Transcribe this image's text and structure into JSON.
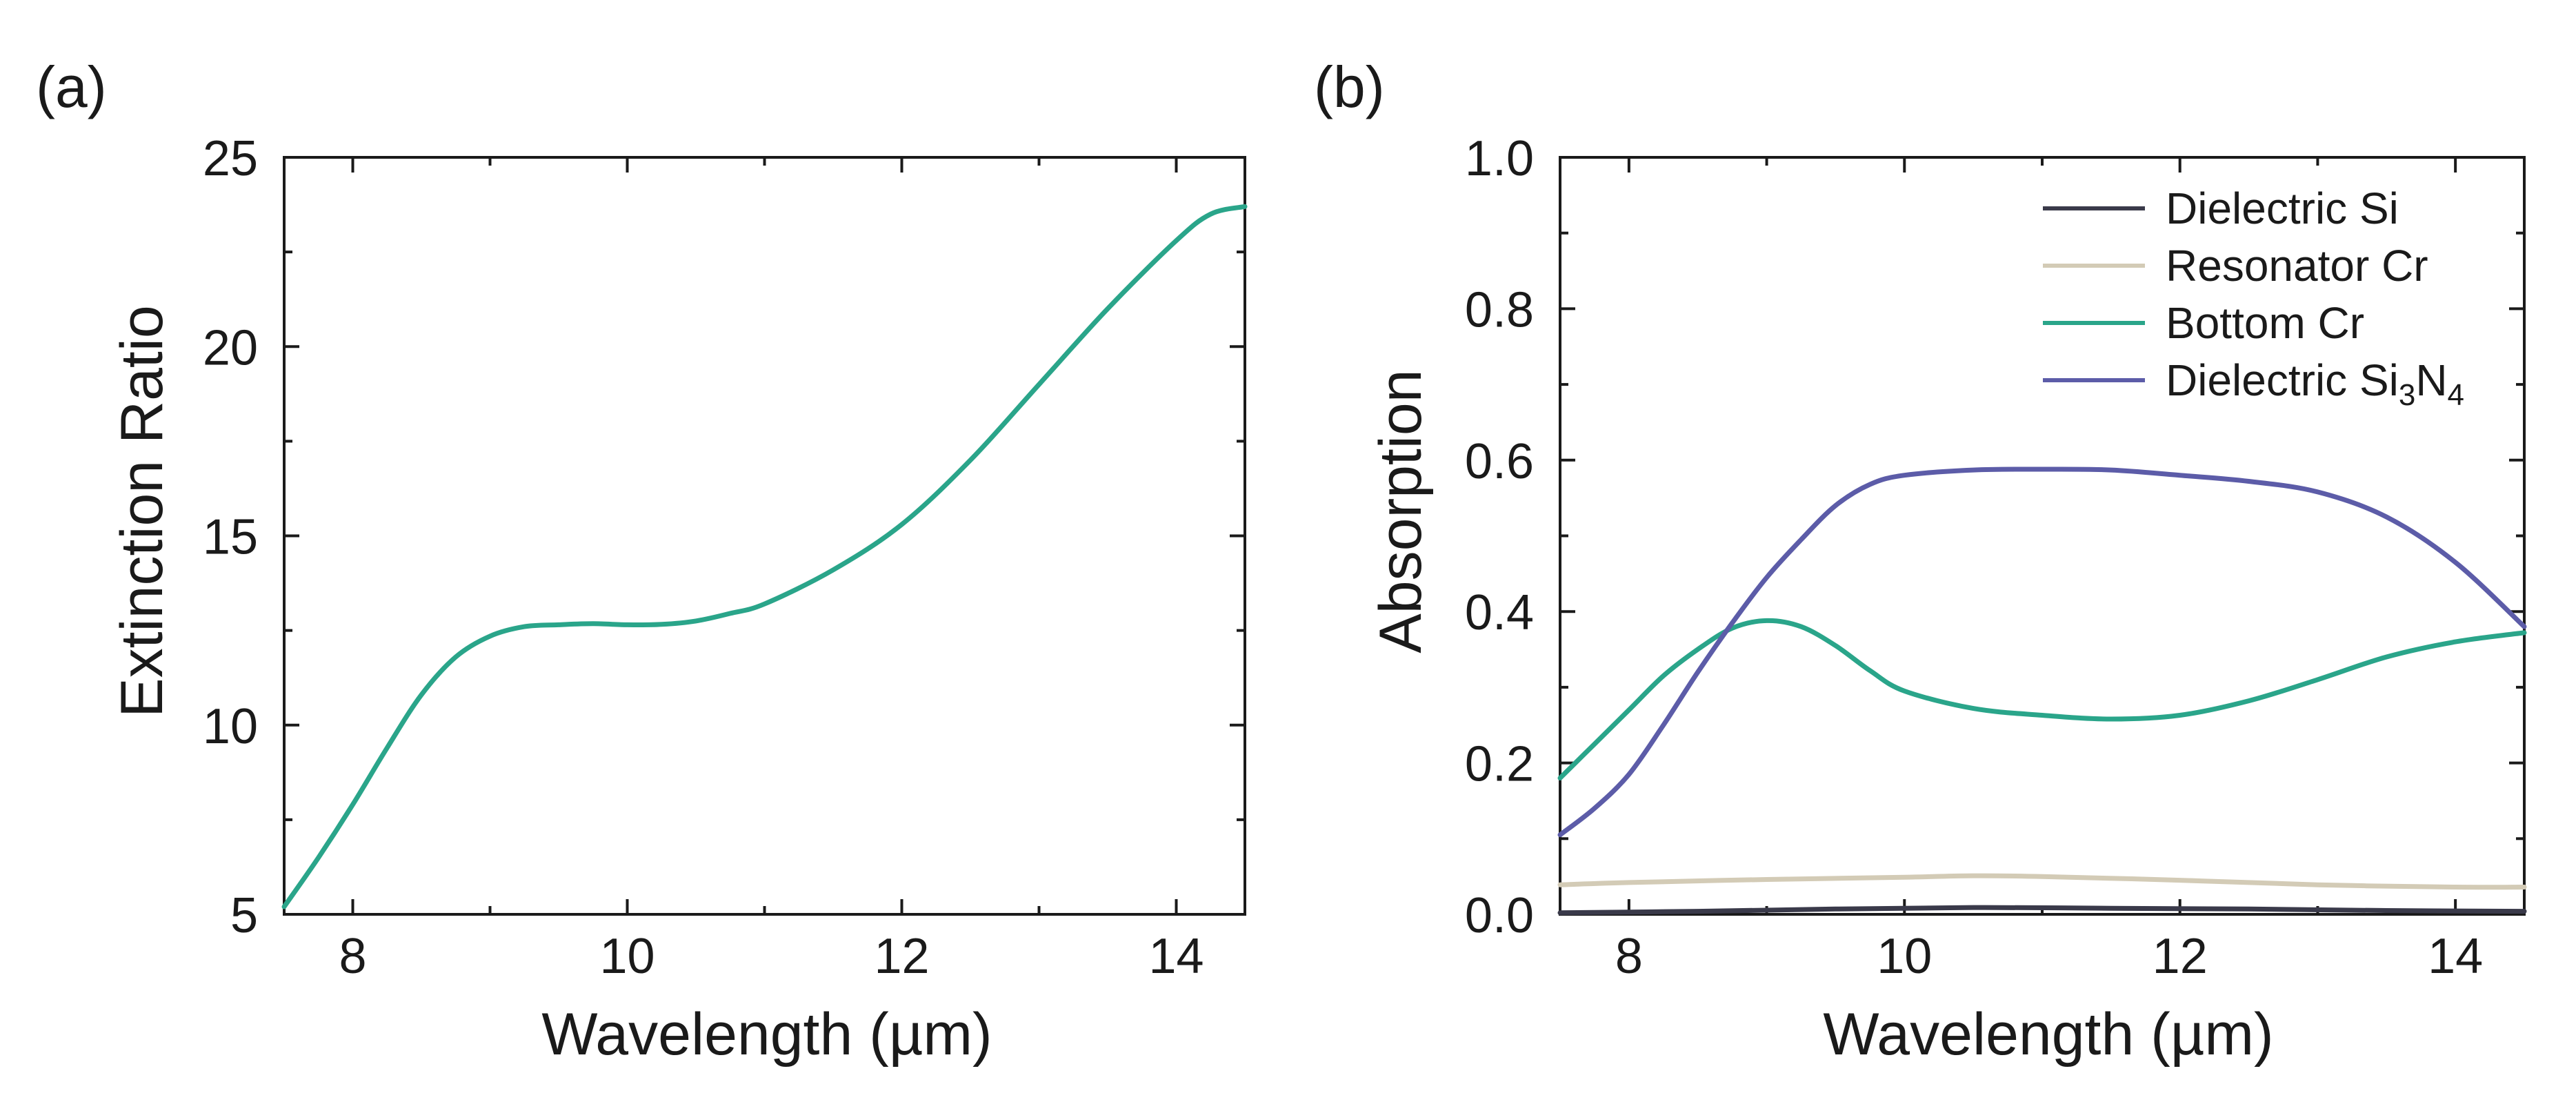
{
  "chart_data": [
    {
      "panel": "(a)",
      "type": "line",
      "title": "",
      "xlabel": "Wavelength (µm)",
      "ylabel": "Extinction Ratio",
      "xlim": [
        7.5,
        14.5
      ],
      "ylim": [
        5,
        25
      ],
      "xticks": [
        8,
        10,
        12,
        14
      ],
      "xtick_labels": [
        "8",
        "10",
        "12",
        "14"
      ],
      "yticks": [
        5,
        10,
        15,
        20,
        25
      ],
      "ytick_labels": [
        "5",
        "10",
        "15",
        "20",
        "25"
      ],
      "grid": false,
      "series": [
        {
          "name": "Extinction Ratio",
          "color": "#2aa58a",
          "x": [
            7.5,
            7.75,
            8.0,
            8.25,
            8.5,
            8.75,
            9.0,
            9.25,
            9.5,
            9.75,
            10.0,
            10.25,
            10.5,
            10.75,
            11.0,
            11.5,
            12.0,
            12.5,
            13.0,
            13.5,
            14.0,
            14.25,
            14.5
          ],
          "y": [
            5.2,
            6.5,
            7.9,
            9.4,
            10.8,
            11.8,
            12.35,
            12.6,
            12.65,
            12.68,
            12.65,
            12.66,
            12.75,
            12.95,
            13.2,
            14.1,
            15.3,
            17.0,
            19.0,
            21.0,
            22.8,
            23.5,
            23.7
          ]
        }
      ]
    },
    {
      "panel": "(b)",
      "type": "line",
      "title": "",
      "xlabel": "Wavelength (µm)",
      "ylabel": "Absorption",
      "xlim": [
        7.5,
        14.5
      ],
      "ylim": [
        0,
        1.0
      ],
      "xticks": [
        8,
        10,
        12,
        14
      ],
      "xtick_labels": [
        "8",
        "10",
        "12",
        "14"
      ],
      "yticks": [
        0.0,
        0.2,
        0.4,
        0.6,
        0.8,
        1.0
      ],
      "ytick_labels": [
        "0.0",
        "0.2",
        "0.4",
        "0.6",
        "0.8",
        "1.0"
      ],
      "grid": false,
      "legend_position": "top-right",
      "series": [
        {
          "name": "Dielectric Si",
          "color": "#3a3a4a",
          "x": [
            7.5,
            8.5,
            9.5,
            10.5,
            11.5,
            12.5,
            13.5,
            14.5
          ],
          "y": [
            0.002,
            0.004,
            0.007,
            0.009,
            0.008,
            0.007,
            0.005,
            0.004
          ]
        },
        {
          "name": "Resonator Cr",
          "color": "#d3cbb6",
          "x": [
            7.5,
            8.0,
            9.0,
            10.0,
            10.5,
            11.0,
            12.0,
            13.0,
            14.0,
            14.5
          ],
          "y": [
            0.039,
            0.042,
            0.046,
            0.049,
            0.051,
            0.05,
            0.045,
            0.039,
            0.036,
            0.036
          ]
        },
        {
          "name": "Bottom Cr",
          "color": "#2aa58a",
          "x": [
            7.5,
            7.75,
            8.0,
            8.25,
            8.5,
            8.75,
            9.0,
            9.25,
            9.5,
            9.75,
            10.0,
            10.5,
            11.0,
            11.5,
            12.0,
            12.5,
            13.0,
            13.5,
            14.0,
            14.5
          ],
          "y": [
            0.18,
            0.225,
            0.27,
            0.315,
            0.35,
            0.378,
            0.388,
            0.38,
            0.355,
            0.322,
            0.295,
            0.272,
            0.263,
            0.258,
            0.263,
            0.282,
            0.31,
            0.34,
            0.36,
            0.372
          ]
        },
        {
          "name_main": "Dielectric Si",
          "name_sub1": "3",
          "name_mid": "N",
          "name_sub2": "4",
          "color": "#5c5ca8",
          "x": [
            7.5,
            7.75,
            8.0,
            8.25,
            8.5,
            8.75,
            9.0,
            9.25,
            9.5,
            9.75,
            10.0,
            10.5,
            11.0,
            11.5,
            12.0,
            12.5,
            13.0,
            13.5,
            14.0,
            14.5
          ],
          "y": [
            0.105,
            0.14,
            0.185,
            0.25,
            0.32,
            0.385,
            0.445,
            0.495,
            0.54,
            0.568,
            0.58,
            0.587,
            0.588,
            0.587,
            0.58,
            0.572,
            0.558,
            0.525,
            0.465,
            0.38
          ]
        }
      ]
    }
  ]
}
